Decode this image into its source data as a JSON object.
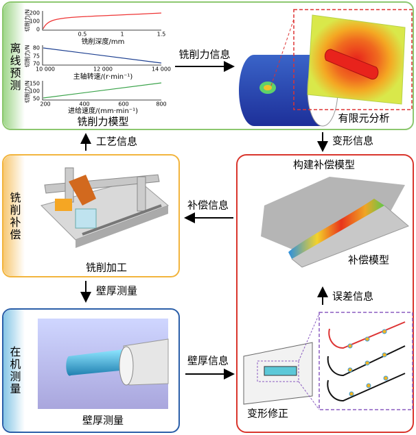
{
  "offline": {
    "label": "离线预测",
    "model_label": "铣削力模型",
    "arrow_label": "铣削力信息",
    "fea_label": "有限元分析",
    "charts": [
      {
        "ylabel": "切削力/N",
        "yticks": [
          "200",
          "100",
          "0"
        ],
        "xticks": [
          "0.5",
          "1",
          "1.5"
        ],
        "xlabel": "铣削深度/mm"
      },
      {
        "ylabel": "切削力/N",
        "yticks": [
          "80",
          "75",
          "70"
        ],
        "xticks": [
          "10 000",
          "12 000",
          "14 000"
        ],
        "xlabel": "主轴转速/(r·min⁻¹)"
      },
      {
        "ylabel": "切削力/N",
        "yticks": [
          "150",
          "100",
          "50"
        ],
        "xticks": [
          "200",
          "400",
          "600",
          "800"
        ],
        "xlabel": "进给速度/(mm·min⁻¹)"
      }
    ]
  },
  "milling": {
    "label": "铣削补偿",
    "caption": "铣削加工",
    "up_arrow": "工艺信息",
    "down_arrow": "壁厚测量",
    "left_arrow": "补偿信息"
  },
  "measure": {
    "label": "在机测量",
    "caption": "壁厚测量",
    "right_arrow": "壁厚信息"
  },
  "compensation": {
    "title": "构建补偿模型",
    "model_label": "补偿模型",
    "error_arrow": "误差信息",
    "deform_label": "变形修正",
    "deform_arrow": "变形信息"
  }
}
